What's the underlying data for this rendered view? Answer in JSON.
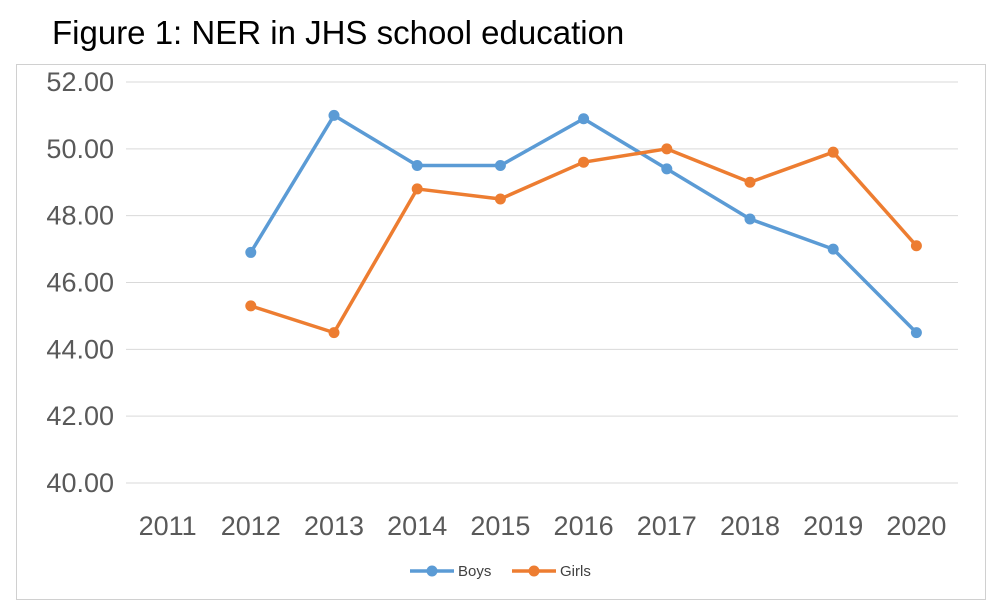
{
  "chart_data": {
    "type": "line",
    "title": "Figure 1: NER in JHS school education",
    "categories": [
      "2011",
      "2012",
      "2013",
      "2014",
      "2015",
      "2016",
      "2017",
      "2018",
      "2019",
      "2020"
    ],
    "ylim": [
      40,
      52
    ],
    "yticks": [
      "40.00",
      "42.00",
      "44.00",
      "46.00",
      "48.00",
      "50.00",
      "52.00"
    ],
    "grid": true,
    "legend_position": "bottom",
    "series": [
      {
        "name": "Boys",
        "color": "#5b9bd5",
        "values": [
          null,
          46.9,
          51.0,
          49.5,
          49.5,
          50.9,
          49.4,
          47.9,
          47.0,
          44.5
        ]
      },
      {
        "name": "Girls",
        "color": "#ed7d31",
        "values": [
          null,
          45.3,
          44.5,
          48.8,
          48.5,
          49.6,
          50.0,
          49.0,
          49.9,
          47.1
        ]
      }
    ]
  }
}
